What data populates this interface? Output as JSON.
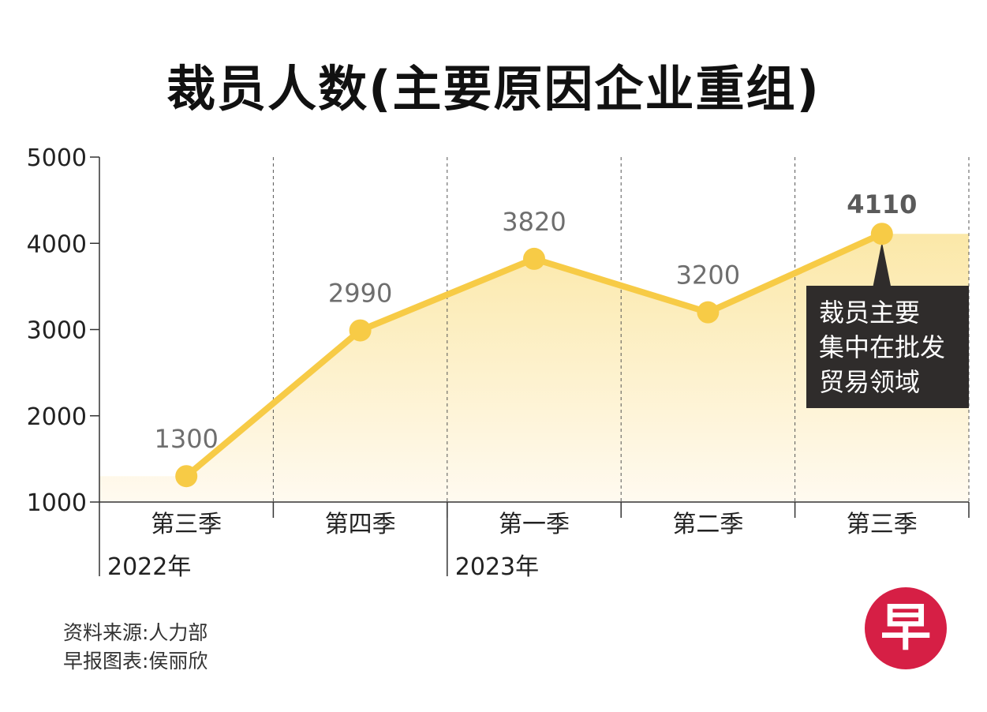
{
  "title": "裁员人数(主要原因企业重组)",
  "chart_data": {
    "type": "area",
    "categories": [
      "第三季",
      "第四季",
      "第一季",
      "第二季",
      "第三季"
    ],
    "year_labels": [
      "2022年",
      "",
      "2023年",
      "",
      ""
    ],
    "values": [
      1300,
      2990,
      3820,
      3200,
      4110
    ],
    "value_labels": [
      "1300",
      "2990",
      "3820",
      "3200",
      "4110"
    ],
    "yticks": [
      "1000",
      "2000",
      "3000",
      "4000",
      "5000"
    ],
    "ylim": [
      1000,
      5000
    ],
    "annotation": [
      "裁员主要",
      "集中在批发",
      "贸易领域"
    ],
    "colors": {
      "line": "#f7cb46",
      "fill_top": "#fbe8a8",
      "fill_bottom": "#fffaf0",
      "callout_bg": "#2f2c2b"
    }
  },
  "source": {
    "line1": "资料来源:人力部",
    "line2": "早报图表:侯丽欣"
  },
  "logo": {
    "text": "早",
    "color": "#d61f45"
  }
}
